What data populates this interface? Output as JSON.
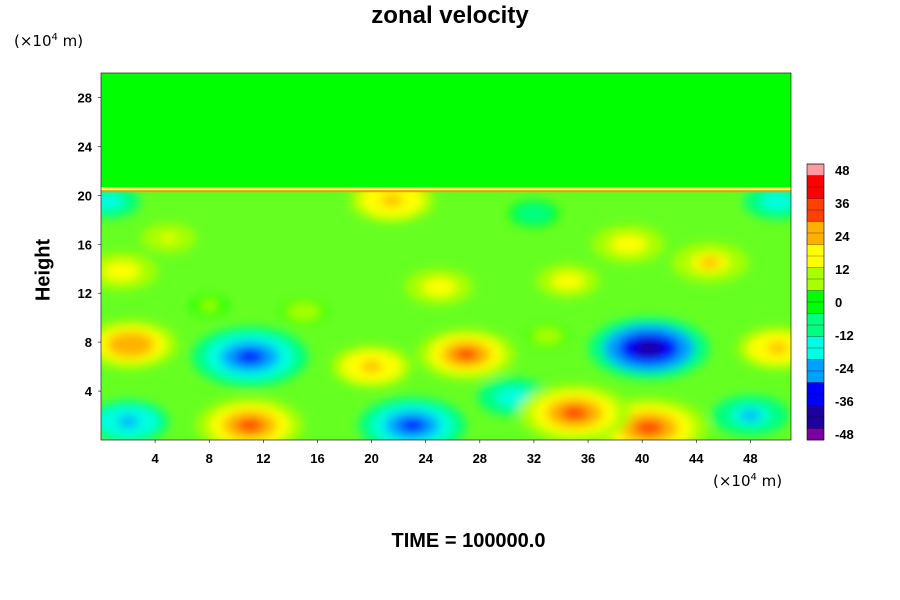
{
  "title": "zonal velocity",
  "y_unit": {
    "prefix": "(×10",
    "exp": "4",
    "suffix": " m)"
  },
  "x_unit": {
    "prefix": "(×10",
    "exp": "4",
    "suffix": " m)"
  },
  "time_label": "TIME = 100000.0",
  "chart_data": {
    "type": "heatmap",
    "title": "zonal velocity",
    "xlabel": "",
    "ylabel": "Height",
    "x_unit": "×10^4 m",
    "y_unit": "×10^4 m",
    "xlim": [
      0,
      51
    ],
    "ylim": [
      0,
      30
    ],
    "x_ticks": [
      "4",
      "8",
      "12",
      "16",
      "20",
      "24",
      "28",
      "32",
      "36",
      "40",
      "44",
      "48"
    ],
    "y_ticks": [
      "4",
      "8",
      "12",
      "16",
      "20",
      "24",
      "28"
    ],
    "colorbar": {
      "range": [
        -48,
        48
      ],
      "ticks": [
        "48",
        "36",
        "24",
        "12",
        "0",
        "-12",
        "-24",
        "-36",
        "-48"
      ],
      "colormap": [
        "#7a00a6",
        "#1e00a0",
        "#0000ff",
        "#00a0ff",
        "#00ffe0",
        "#00ff80",
        "#00ff00",
        "#a8ff00",
        "#ffff00",
        "#ffb000",
        "#ff4000",
        "#ff0000",
        "#ff9aa0"
      ]
    },
    "field_blobs": [
      {
        "x": 11,
        "y": 6.8,
        "value": -44
      },
      {
        "x": 40.5,
        "y": 7.5,
        "value": -46
      },
      {
        "x": 23,
        "y": 1.2,
        "value": -40
      },
      {
        "x": 2,
        "y": 1.5,
        "value": -28
      },
      {
        "x": 48,
        "y": 2,
        "value": -26
      },
      {
        "x": 30.5,
        "y": 3.5,
        "value": -24
      },
      {
        "x": 50,
        "y": 19.5,
        "value": -22
      },
      {
        "x": 0.5,
        "y": 19.5,
        "value": -20
      },
      {
        "x": 32,
        "y": 18.5,
        "value": -14
      },
      {
        "x": 11,
        "y": 1.2,
        "value": 40
      },
      {
        "x": 40.5,
        "y": 1.0,
        "value": 44
      },
      {
        "x": 35,
        "y": 2.2,
        "value": 42
      },
      {
        "x": 2.2,
        "y": 7.8,
        "value": 34
      },
      {
        "x": 27,
        "y": 7.0,
        "value": 36
      },
      {
        "x": 20,
        "y": 6.0,
        "value": 28
      },
      {
        "x": 50,
        "y": 7.5,
        "value": 28
      },
      {
        "x": 21.5,
        "y": 19.6,
        "value": 30
      },
      {
        "x": 45,
        "y": 14.5,
        "value": 26
      },
      {
        "x": 39,
        "y": 16.0,
        "value": 24
      },
      {
        "x": 1.5,
        "y": 13.8,
        "value": 24
      },
      {
        "x": 25,
        "y": 12.5,
        "value": 22
      },
      {
        "x": 34.5,
        "y": 13.0,
        "value": 20
      },
      {
        "x": 5,
        "y": 16.5,
        "value": 16
      },
      {
        "x": 15,
        "y": 10.5,
        "value": 12
      },
      {
        "x": 33,
        "y": 8.5,
        "value": 10
      },
      {
        "x": 8,
        "y": 11.0,
        "value": 8
      }
    ],
    "upper_layer": {
      "y_from": 20.5,
      "y_to": 30,
      "value": 0
    }
  }
}
